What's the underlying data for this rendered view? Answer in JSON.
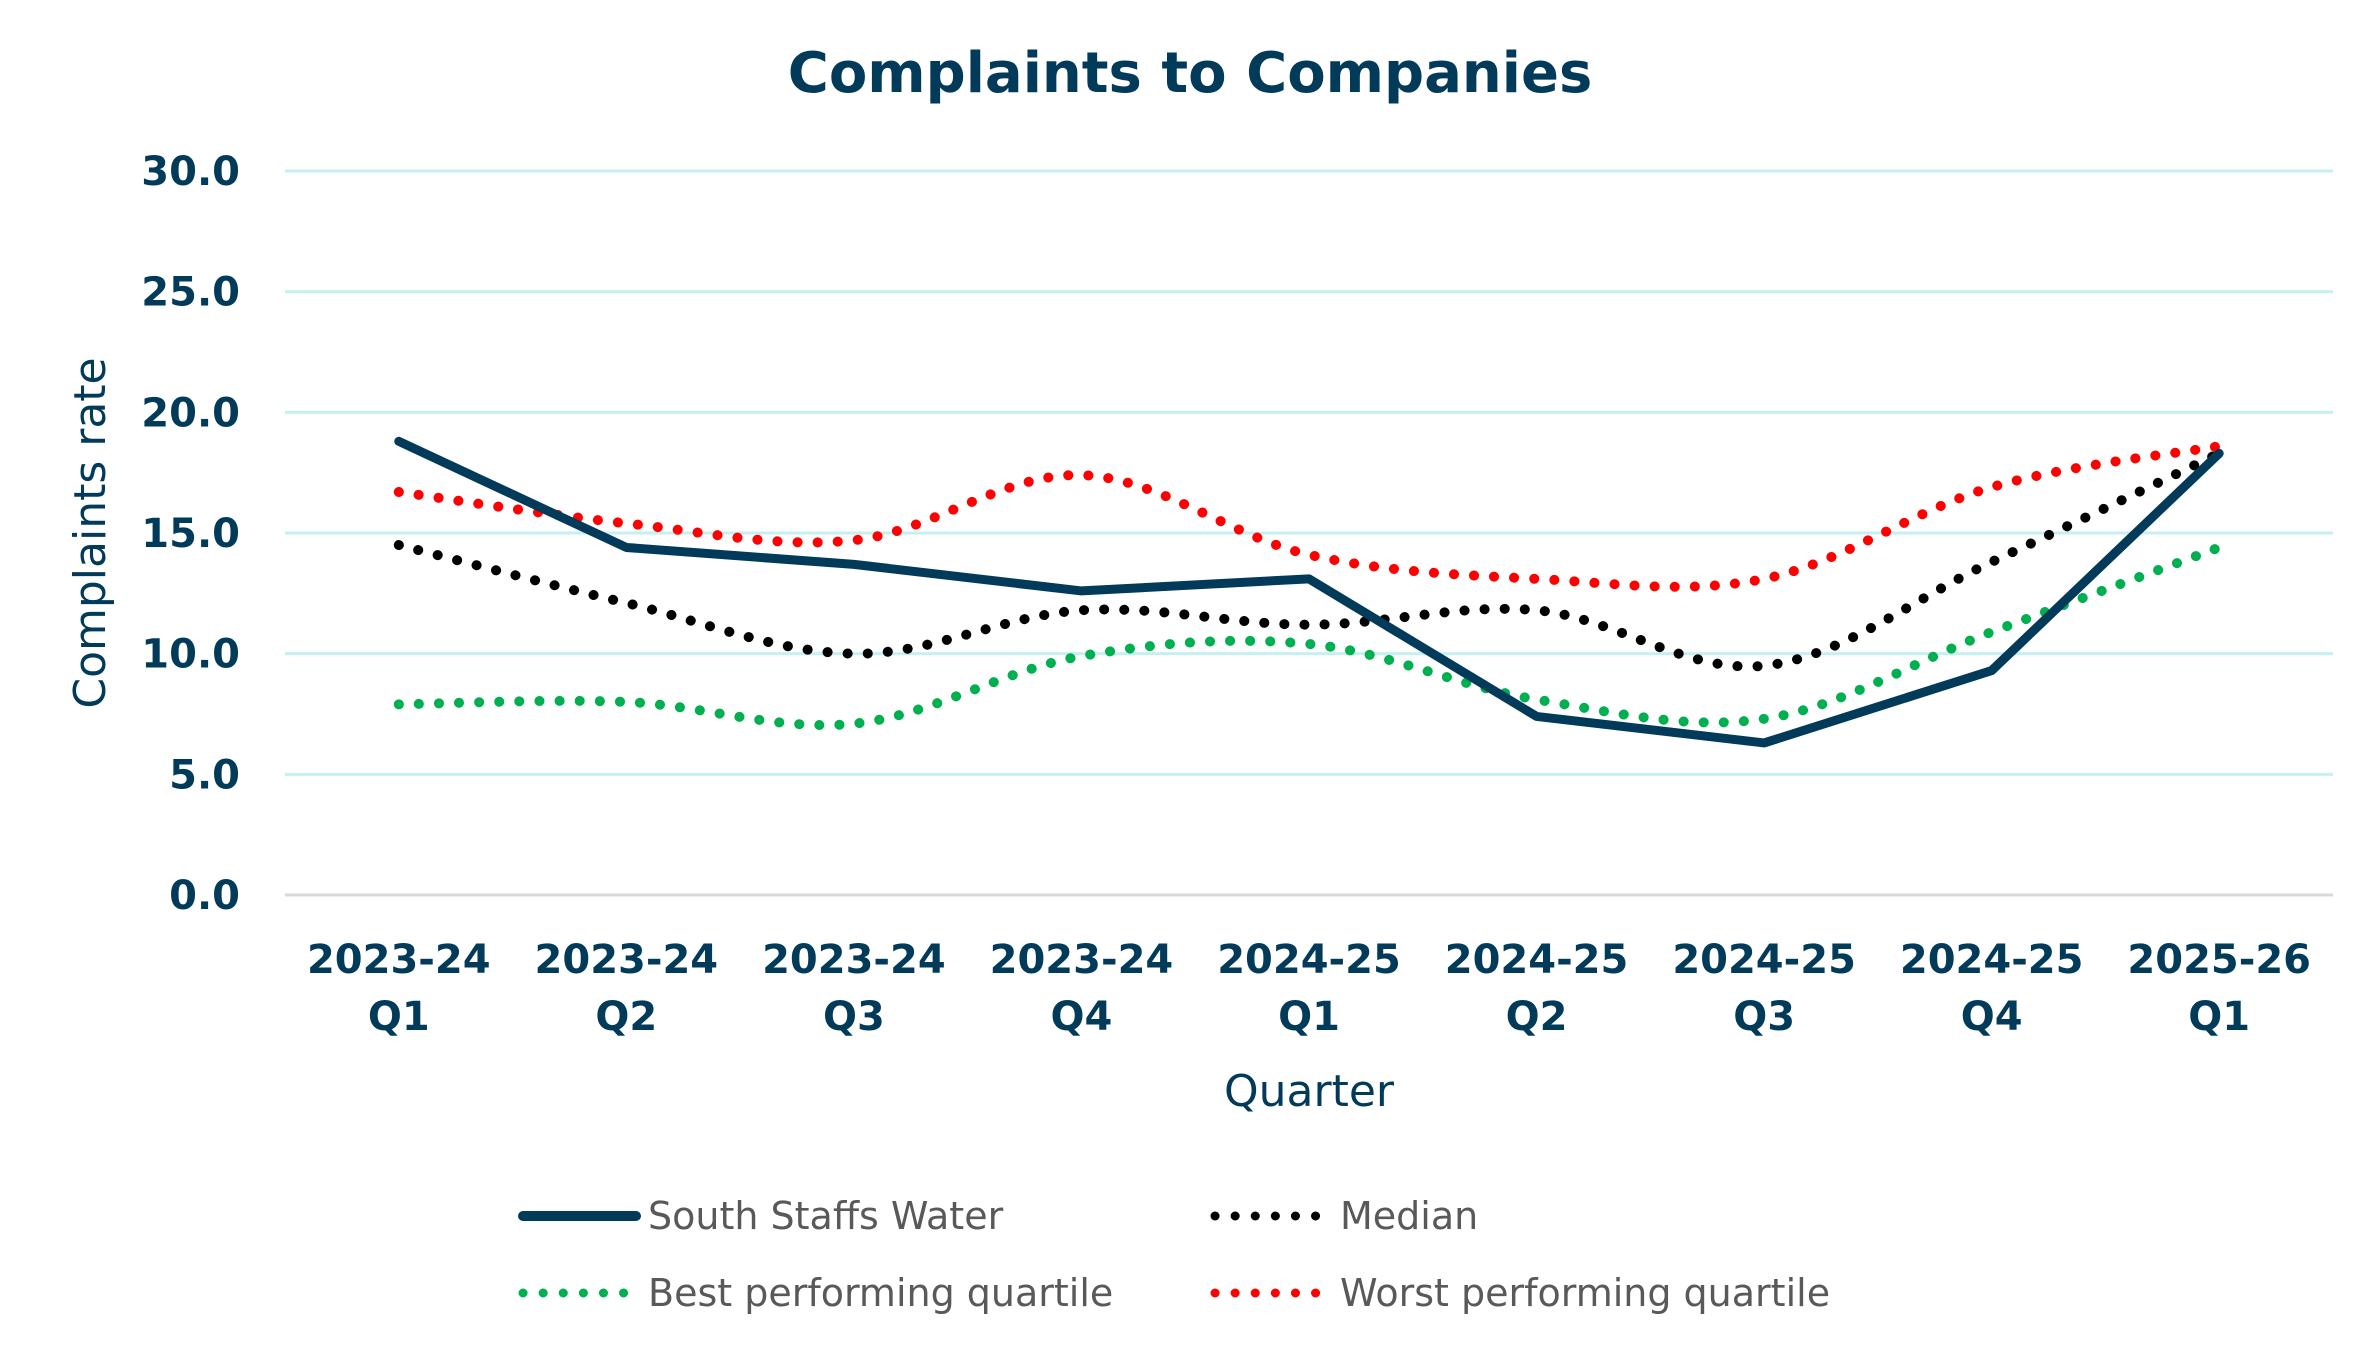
{
  "chart_data": {
    "type": "line",
    "title": "Complaints to Companies",
    "xlabel": "Quarter",
    "ylabel": "Complaints rate",
    "ylim": [
      0,
      30
    ],
    "yticks": [
      "0.0",
      "5.0",
      "10.0",
      "15.0",
      "20.0",
      "25.0",
      "30.0"
    ],
    "ytick_values": [
      0,
      5,
      10,
      15,
      20,
      25,
      30
    ],
    "grid": true,
    "legend_position": "bottom",
    "categories": [
      [
        "2023-24",
        "Q1"
      ],
      [
        "2023-24",
        "Q2"
      ],
      [
        "2023-24",
        "Q3"
      ],
      [
        "2023-24",
        "Q4"
      ],
      [
        "2024-25",
        "Q1"
      ],
      [
        "2024-25",
        "Q2"
      ],
      [
        "2024-25",
        "Q3"
      ],
      [
        "2024-25",
        "Q4"
      ],
      [
        "2025-26",
        "Q1"
      ]
    ],
    "series": [
      {
        "name": "South Staffs Water",
        "style": "solid",
        "color": "#023a5a",
        "values": [
          18.8,
          14.4,
          13.7,
          12.6,
          13.1,
          7.4,
          6.3,
          9.3,
          18.3
        ]
      },
      {
        "name": "Median",
        "style": "dotted",
        "color": "#000000",
        "values": [
          14.5,
          12.1,
          10.0,
          11.8,
          11.2,
          11.8,
          9.5,
          13.8,
          18.3
        ]
      },
      {
        "name": "Best performing quartile",
        "style": "dotted",
        "color": "#00b050",
        "values": [
          7.9,
          8.0,
          7.1,
          9.9,
          10.4,
          8.1,
          7.3,
          10.9,
          14.4
        ]
      },
      {
        "name": "Worst performing quartile",
        "style": "dotted",
        "color": "#ff0000",
        "values": [
          16.7,
          15.4,
          14.7,
          17.4,
          14.1,
          13.1,
          13.1,
          16.9,
          18.6
        ]
      }
    ]
  },
  "colors": {
    "gridline": "#c6eff2",
    "baseline": "#d9d9d9",
    "text": "#023a5a",
    "legend_text": "#595959"
  }
}
